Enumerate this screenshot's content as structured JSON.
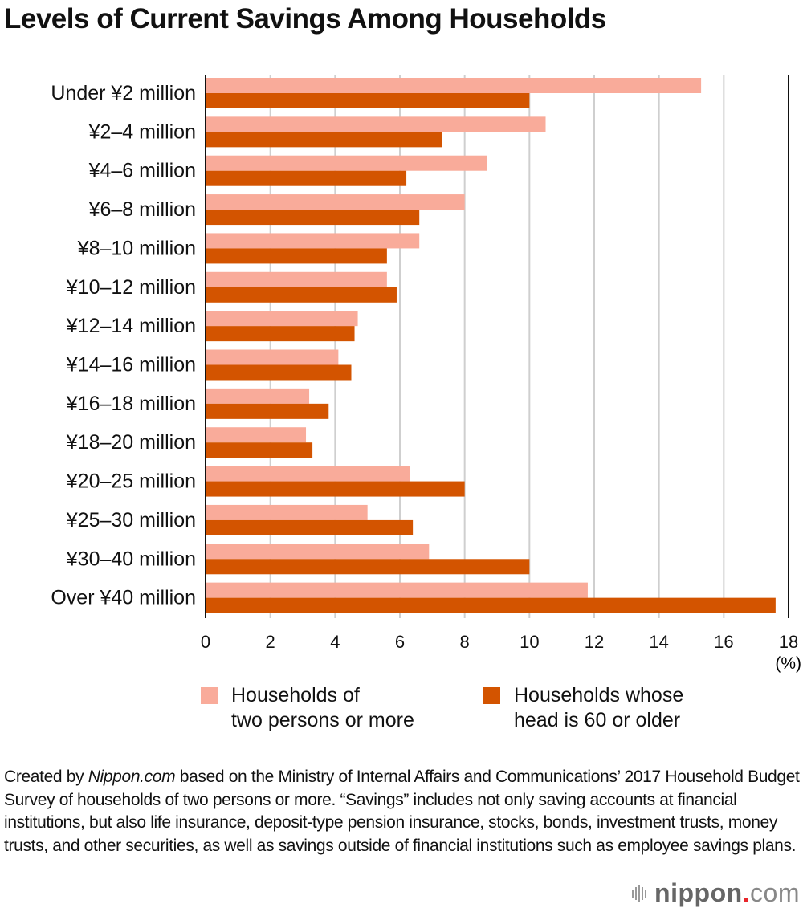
{
  "title": "Levels of Current Savings Among Households",
  "chart_data": {
    "type": "bar",
    "orientation": "horizontal",
    "title": "Levels of Current Savings Among Households",
    "xlabel": "",
    "unit_label": "(%)",
    "ylabel": "",
    "xlim": [
      0,
      18
    ],
    "xticks": [
      "0",
      "2",
      "4",
      "6",
      "8",
      "10",
      "12",
      "14",
      "16",
      "18"
    ],
    "grid": true,
    "legend_position": "bottom",
    "categories": [
      "Under ¥2 million",
      "¥2–4 million",
      "¥4–6 million",
      "¥6–8 million",
      "¥8–10 million",
      "¥10–12 million",
      "¥12–14 million",
      "¥14–16 million",
      "¥16–18 million",
      "¥18–20 million",
      "¥20–25 million",
      "¥25–30 million",
      "¥30–40 million",
      "Over ¥40 million"
    ],
    "series": [
      {
        "name": "Households of two persons or more",
        "legend_lines": [
          "Households of",
          "two persons or more"
        ],
        "color": "#f9ab9a",
        "values": [
          15.3,
          10.5,
          8.7,
          8.0,
          6.6,
          5.6,
          4.7,
          4.1,
          3.2,
          3.1,
          6.3,
          5.0,
          6.9,
          11.8
        ]
      },
      {
        "name": "Households whose head is 60 or older",
        "legend_lines": [
          "Households whose",
          "head is 60 or older"
        ],
        "color": "#d35400",
        "values": [
          10.0,
          7.3,
          6.2,
          6.6,
          5.6,
          5.9,
          4.6,
          4.5,
          3.8,
          3.3,
          8.0,
          6.4,
          10.0,
          17.6
        ]
      }
    ]
  },
  "footer": {
    "prefix": "Created by ",
    "brand_italic": "Nippon.com",
    "text": " based on the Ministry of Internal Affairs and Communications’ 2017 Household Budget Survey of households of two persons or more. “Savings” includes not only saving accounts at financial institutions, but also life insurance, deposit-type pension insurance, stocks, bonds, investment trusts, money trusts, and other securities, as well as savings outside of financial institutions such as employee savings plans."
  },
  "logo": {
    "name": "nippon",
    "dot": ".",
    "suffix": "com",
    "icon": "sound-bars-icon"
  }
}
